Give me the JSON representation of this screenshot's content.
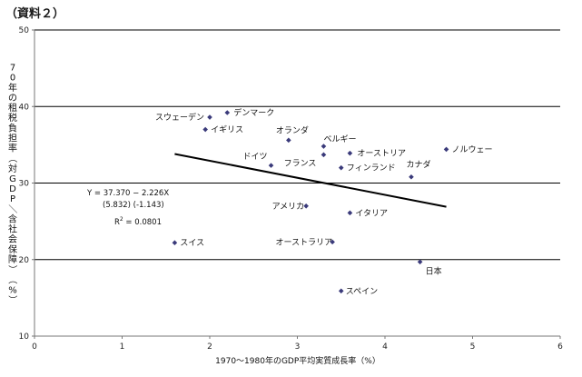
{
  "page": {
    "title": "（資料２）"
  },
  "chart_data": {
    "type": "scatter",
    "xlabel": "1970～1980年のGDP平均実質成長率（%）",
    "ylabel": "70年の租税負担率（対GDP／含社会保障）（%）",
    "xlim": [
      0,
      6
    ],
    "ylim": [
      10,
      50
    ],
    "x_ticks": [
      "0",
      "1",
      "2",
      "3",
      "4",
      "5",
      "6"
    ],
    "y_ticks": [
      "10",
      "20",
      "30",
      "40",
      "50"
    ],
    "grid": "horizontal",
    "points": [
      {
        "label": "スウェーデン",
        "x": 2.0,
        "y": 38.6
      },
      {
        "label": "デンマーク",
        "x": 2.2,
        "y": 39.2
      },
      {
        "label": "イギリス",
        "x": 1.95,
        "y": 37.0
      },
      {
        "label": "オランダ",
        "x": 2.9,
        "y": 35.6
      },
      {
        "label": "ベルギー",
        "x": 3.3,
        "y": 34.8
      },
      {
        "label": "オーストリア",
        "x": 3.6,
        "y": 33.9
      },
      {
        "label": "ノルウェー",
        "x": 4.7,
        "y": 34.4
      },
      {
        "label": "ドイツ",
        "x": 2.7,
        "y": 32.3
      },
      {
        "label": "フランス",
        "x": 3.3,
        "y": 33.7
      },
      {
        "label": "フィンランド",
        "x": 3.5,
        "y": 32.0
      },
      {
        "label": "カナダ",
        "x": 4.3,
        "y": 30.8
      },
      {
        "label": "アメリカ",
        "x": 3.1,
        "y": 27.0
      },
      {
        "label": "イタリア",
        "x": 3.6,
        "y": 26.1
      },
      {
        "label": "スイス",
        "x": 1.6,
        "y": 22.2
      },
      {
        "label": "オーストラリア",
        "x": 3.4,
        "y": 22.3
      },
      {
        "label": "日本",
        "x": 4.4,
        "y": 19.7
      },
      {
        "label": "スペイン",
        "x": 3.5,
        "y": 15.9
      }
    ],
    "trendline": {
      "x": [
        1.6,
        4.7
      ],
      "y": [
        33.8,
        26.9
      ]
    },
    "annotations": {
      "equation": "Y = 37.370 − 2.226X",
      "tvalues": "(5.832)  (-1.143)",
      "r2": "R",
      "r2_sup": "2",
      "r2_value": " = 0.0801"
    },
    "colors": {
      "marker": "#3a3a7a",
      "trend": "#000000",
      "grid": "#000000",
      "axis": "#777777"
    }
  }
}
